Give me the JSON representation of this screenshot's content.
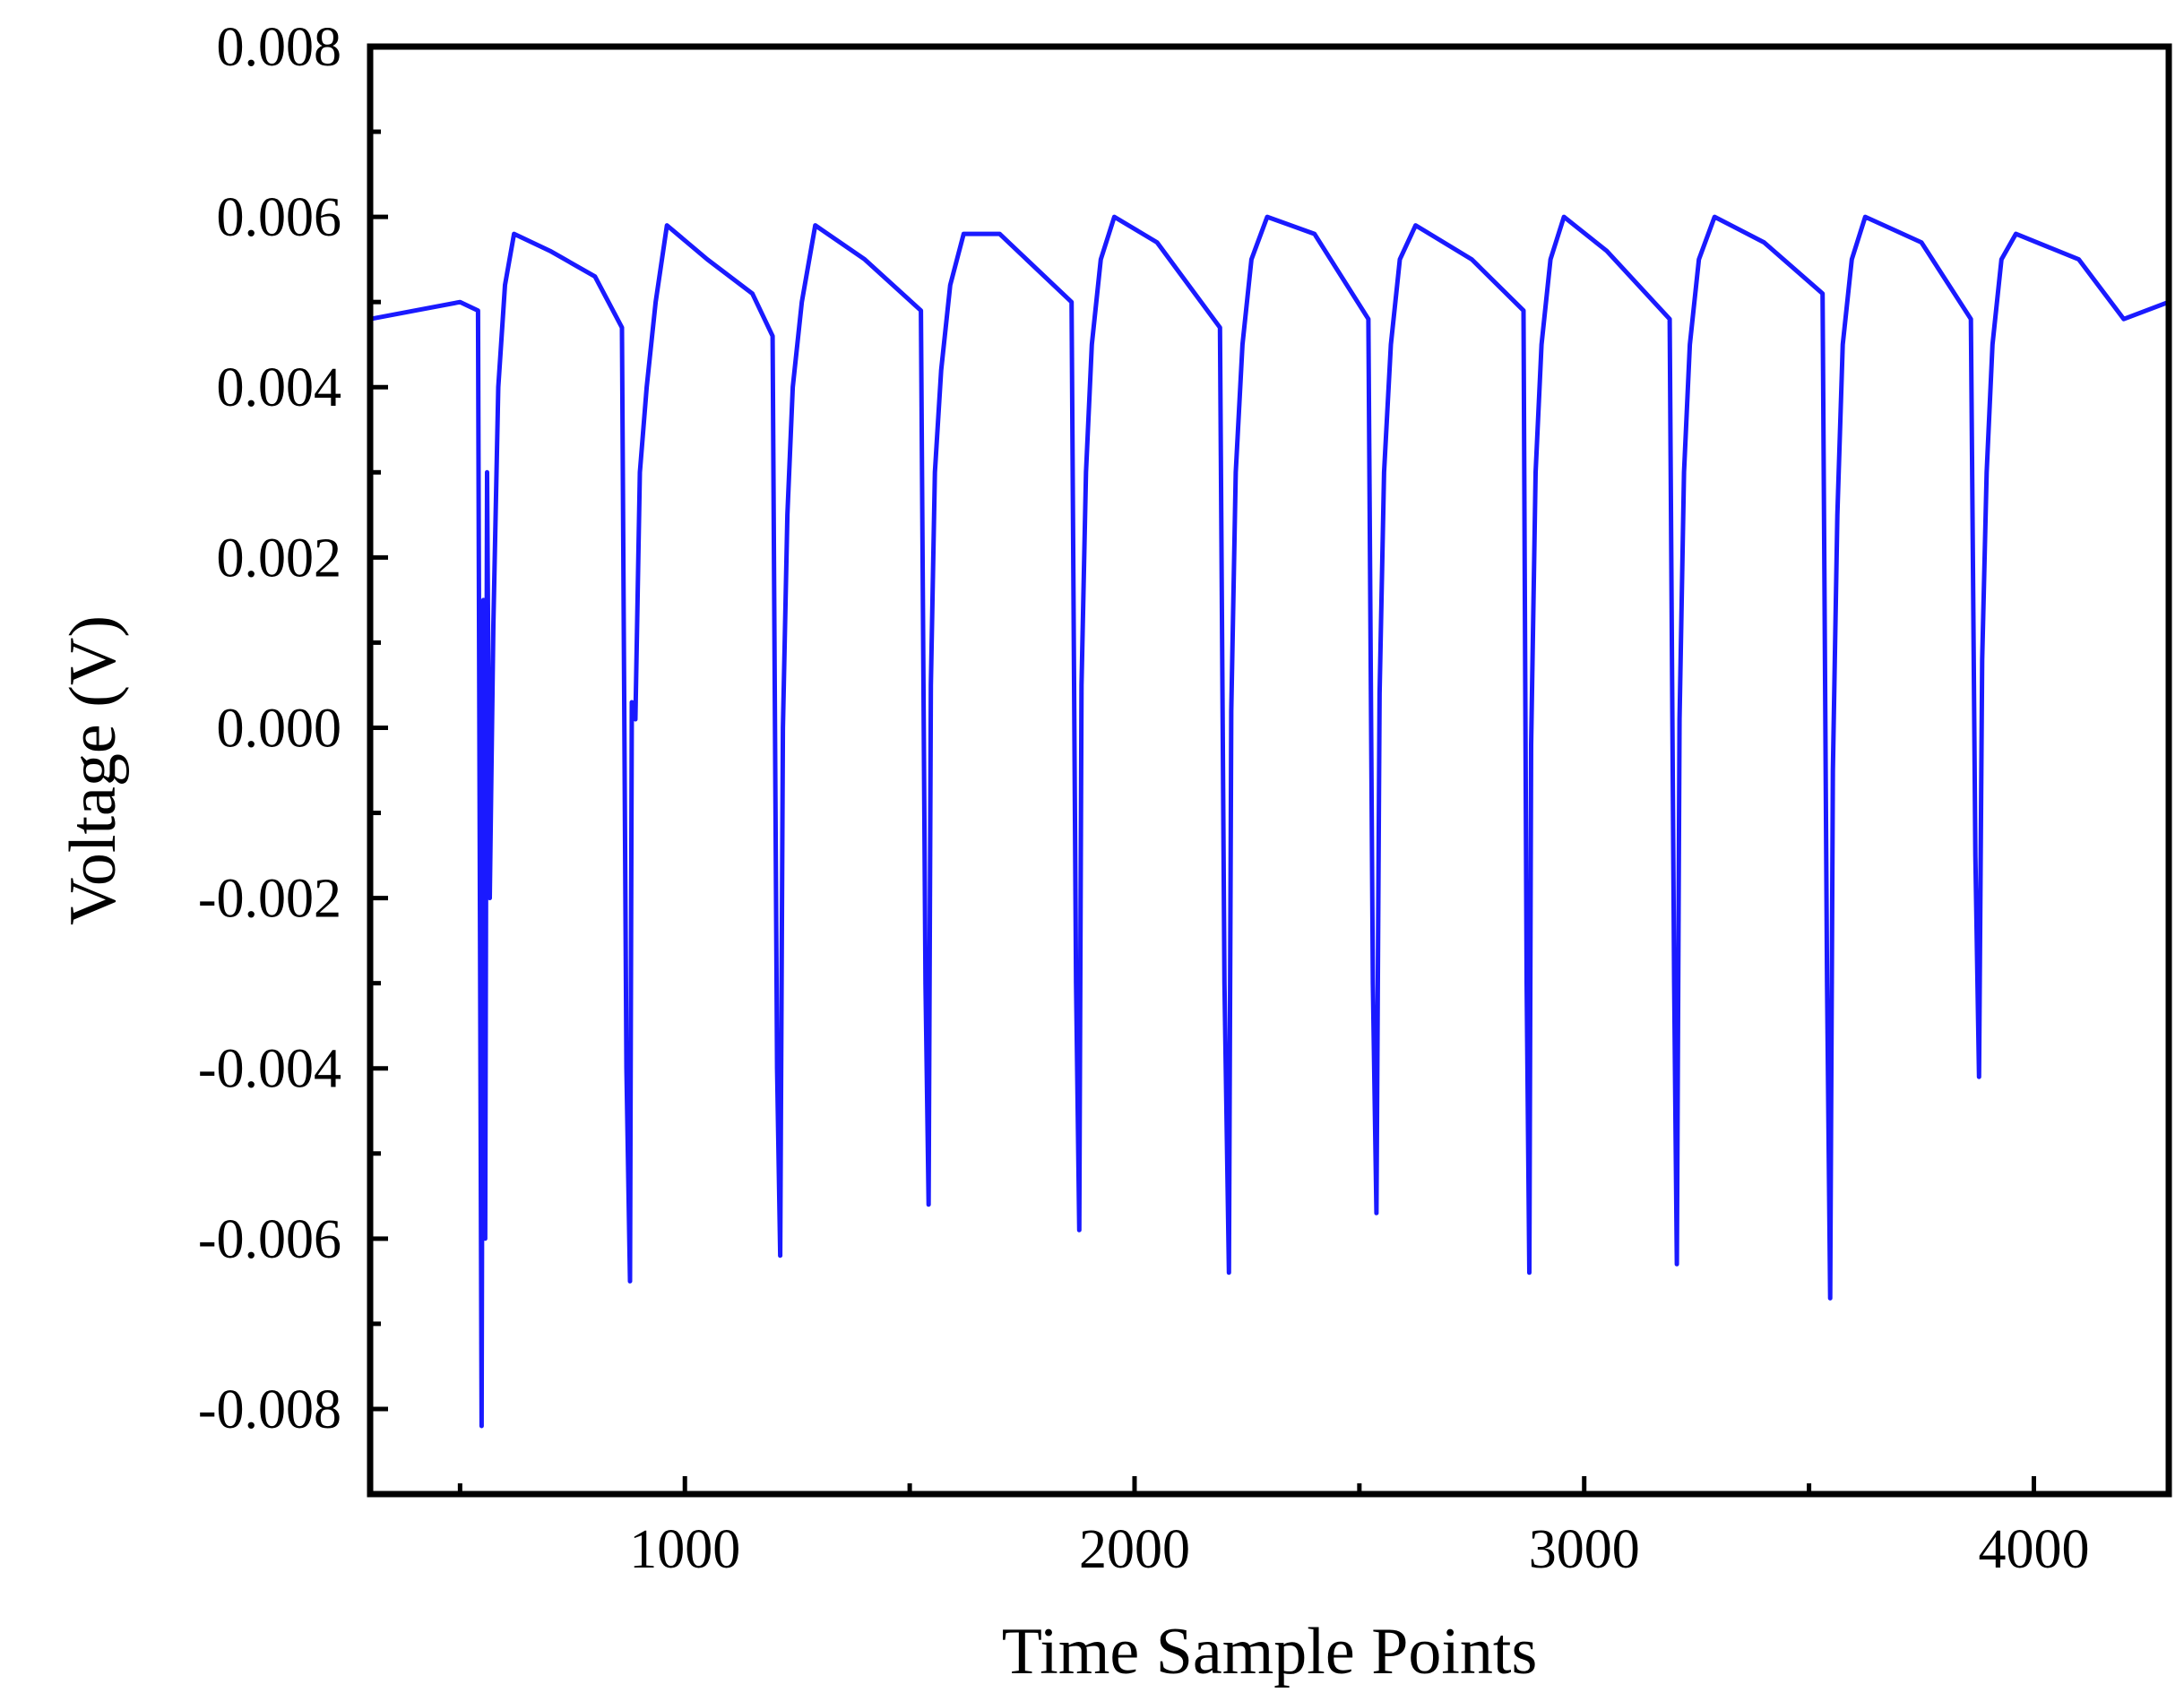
{
  "chart_data": {
    "type": "line",
    "title": "",
    "xlabel": "Time Sample Points",
    "ylabel": "Voltage (V)",
    "xlim": [
      300,
      4300
    ],
    "ylim": [
      -0.009,
      0.008
    ],
    "x_ticks": [
      1000,
      2000,
      3000,
      4000
    ],
    "x_tick_labels": [
      "1000",
      "2000",
      "3000",
      "4000"
    ],
    "y_ticks": [
      -0.008,
      -0.006,
      -0.004,
      -0.002,
      0.0,
      0.002,
      0.004,
      0.006,
      0.008
    ],
    "y_tick_labels": [
      "-0.008",
      "-0.006",
      "-0.004",
      "-0.002",
      "0.000",
      "0.002",
      "0.004",
      "0.006",
      "0.008"
    ],
    "grid": false,
    "legend": "none",
    "line_color": "#1a1aff",
    "series": [
      {
        "x": [
          300,
          400,
          500,
          540,
          548,
          552,
          556,
          560,
          566,
          574,
          585,
          600,
          620,
          700,
          800,
          860,
          870,
          878,
          882,
          890,
          900,
          915,
          935,
          960,
          1050,
          1150,
          1195,
          1205,
          1212,
          1218,
          1228,
          1240,
          1260,
          1290,
          1400,
          1525,
          1535,
          1542,
          1547,
          1556,
          1570,
          1590,
          1620,
          1700,
          1860,
          1870,
          1877,
          1882,
          1892,
          1905,
          1925,
          1955,
          2050,
          2190,
          2200,
          2210,
          2215,
          2225,
          2240,
          2260,
          2295,
          2400,
          2520,
          2530,
          2538,
          2545,
          2555,
          2570,
          2590,
          2625,
          2750,
          2865,
          2872,
          2878,
          2882,
          2892,
          2905,
          2925,
          2955,
          3050,
          3190,
          3200,
          3206,
          3212,
          3222,
          3235,
          3255,
          3290,
          3400,
          3530,
          3540,
          3547,
          3553,
          3563,
          3575,
          3595,
          3625,
          3750,
          3860,
          3870,
          3878,
          3885,
          3895,
          3908,
          3928,
          3960,
          4100,
          4200,
          4300
        ],
        "y": [
          0.0048,
          0.0049,
          0.005,
          0.0049,
          -0.0082,
          0.0015,
          -0.006,
          0.003,
          -0.002,
          0.0012,
          0.004,
          0.0052,
          0.0058,
          0.0056,
          0.0053,
          0.0047,
          -0.004,
          -0.0065,
          0.0003,
          0.0001,
          0.003,
          0.004,
          0.005,
          0.0059,
          0.0055,
          0.0051,
          0.0046,
          -0.004,
          -0.0062,
          0.0,
          0.0025,
          0.004,
          0.005,
          0.0059,
          0.0055,
          0.0049,
          -0.003,
          -0.0056,
          0.0005,
          0.003,
          0.0042,
          0.0052,
          0.0058,
          0.0058,
          0.005,
          -0.003,
          -0.0059,
          0.0005,
          0.003,
          0.0045,
          0.0055,
          0.006,
          0.0057,
          0.0047,
          -0.003,
          -0.0064,
          0.0002,
          0.003,
          0.0045,
          0.0055,
          0.006,
          0.0058,
          0.0048,
          -0.003,
          -0.0057,
          0.0004,
          0.003,
          0.0045,
          0.0055,
          0.0059,
          0.0055,
          0.0049,
          -0.003,
          -0.0064,
          -0.0002,
          0.003,
          0.0045,
          0.0055,
          0.006,
          0.0056,
          0.0048,
          -0.003,
          -0.0063,
          0.0001,
          0.003,
          0.0045,
          0.0055,
          0.006,
          0.0057,
          0.0051,
          -0.003,
          -0.0067,
          -0.0005,
          0.0025,
          0.0045,
          0.0055,
          0.006,
          0.0057,
          0.0048,
          -0.0015,
          -0.0041,
          0.0008,
          0.003,
          0.0045,
          0.0055,
          0.0058,
          0.0055,
          0.0048,
          0.005
        ]
      }
    ]
  }
}
